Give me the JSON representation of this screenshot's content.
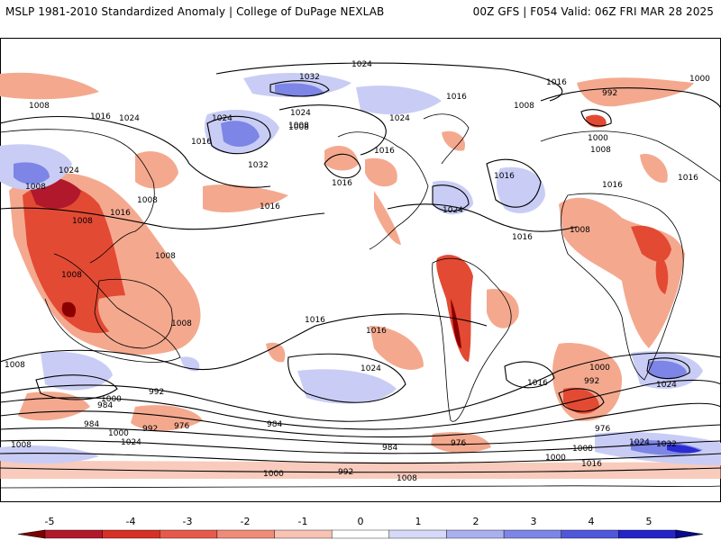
{
  "header": {
    "left": "MSLP 1981-2010 Standardized Anomaly | College of DuPage NEXLAB",
    "right": "00Z GFS | F054 Valid: 06Z FRI MAR 28 2025"
  },
  "map": {
    "isobar_labels": [
      "1024",
      "1032",
      "1016",
      "992",
      "1000",
      "1008",
      "1016",
      "1024",
      "1016",
      "1008",
      "1024",
      "1008",
      "1016",
      "1000",
      "1008",
      "1016",
      "1016",
      "1032",
      "1024",
      "1008",
      "1016",
      "1024",
      "1008",
      "1008",
      "1024",
      "1016",
      "1016",
      "1008",
      "1008",
      "1016",
      "1008",
      "1016",
      "1008",
      "1016",
      "1024",
      "1008",
      "1000",
      "992",
      "976",
      "1016",
      "1024",
      "1016",
      "984",
      "1000",
      "992",
      "984",
      "976",
      "1000",
      "984",
      "992",
      "1024",
      "984",
      "976",
      "1008",
      "1024",
      "1032",
      "1008",
      "1000",
      "1016",
      "1000",
      "992",
      "1008",
      "1016",
      "1024",
      "1008"
    ],
    "colors": {
      "neg_strong": "#8b0000",
      "neg": "#e34a33",
      "neg_light": "#f4a98f",
      "pos_light": "#c9cdf5",
      "pos": "#7d85e6",
      "pos_strong": "#2b2bd1"
    }
  },
  "colorbar": {
    "ticks": [
      "-5",
      "-4",
      "-3",
      "-2",
      "-1",
      "0",
      "1",
      "2",
      "3",
      "4",
      "5"
    ],
    "colors": [
      "#7f0000",
      "#b2182b",
      "#d73027",
      "#e75a4a",
      "#f08b7a",
      "#f8c2b4",
      "#ffffff",
      "#d6d9f7",
      "#aab0ef",
      "#7d85e6",
      "#4f58d9",
      "#2424c8",
      "#0a0a90"
    ]
  }
}
